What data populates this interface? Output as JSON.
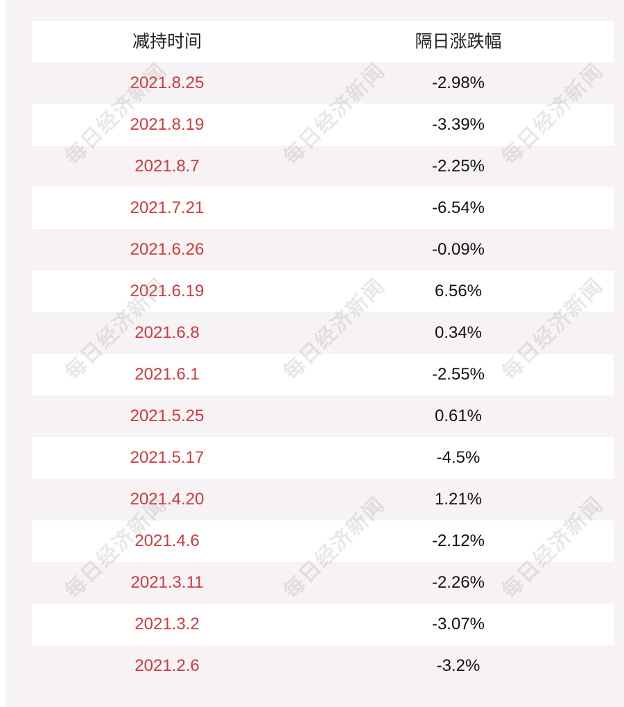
{
  "table": {
    "headers": [
      "减持时间",
      "隔日涨跌幅"
    ],
    "rows": [
      {
        "date": "2021.8.25",
        "change": "-2.98%"
      },
      {
        "date": "2021.8.19",
        "change": "-3.39%"
      },
      {
        "date": "2021.8.7",
        "change": "-2.25%"
      },
      {
        "date": "2021.7.21",
        "change": "-6.54%"
      },
      {
        "date": "2021.6.26",
        "change": "-0.09%"
      },
      {
        "date": "2021.6.19",
        "change": "6.56%"
      },
      {
        "date": "2021.6.8",
        "change": "0.34%"
      },
      {
        "date": "2021.6.1",
        "change": "-2.55%"
      },
      {
        "date": "2021.5.25",
        "change": "0.61%"
      },
      {
        "date": "2021.5.17",
        "change": "-4.5%"
      },
      {
        "date": "2021.4.20",
        "change": "1.21%"
      },
      {
        "date": "2021.4.6",
        "change": "-2.12%"
      },
      {
        "date": "2021.3.11",
        "change": "-2.26%"
      },
      {
        "date": "2021.3.2",
        "change": "-3.07%"
      },
      {
        "date": "2021.2.6",
        "change": "-3.2%"
      }
    ]
  },
  "watermark": {
    "text": "每日经济新闻"
  },
  "colors": {
    "date_text": "#d03a3f",
    "value_text": "#111111",
    "panel_background": "#f7f2f4",
    "row_background": "#ffffff"
  }
}
